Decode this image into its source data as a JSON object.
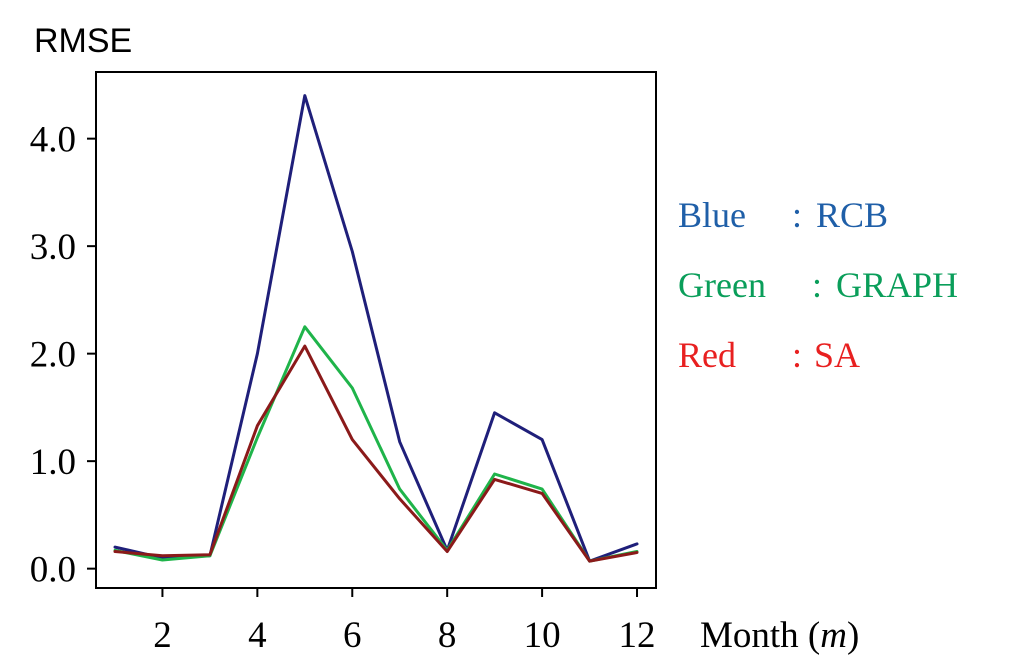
{
  "chart_data": {
    "type": "line",
    "title": "",
    "ylabel": "RMSE",
    "xlabel_text": "Month (",
    "xlabel_var": "m",
    "xlabel_close": ")",
    "x": [
      1,
      2,
      3,
      4,
      5,
      6,
      7,
      8,
      9,
      10,
      11,
      12
    ],
    "xticks": [
      2,
      4,
      6,
      8,
      10,
      12
    ],
    "xtick_labels": [
      "2",
      "4",
      "6",
      "8",
      "10",
      "12"
    ],
    "yticks": [
      0,
      1,
      2,
      3,
      4
    ],
    "ytick_labels": [
      "0.0",
      "1.0",
      "2.0",
      "3.0",
      "4.0"
    ],
    "xlim": [
      0.6,
      12.4
    ],
    "ylim": [
      -0.18,
      4.62
    ],
    "grid": false,
    "legend_position": "right",
    "series": [
      {
        "key": "blue",
        "color_name": "Blue",
        "name": "RCB",
        "color": "#1f1f7a",
        "legend_color": "#1f5fa8",
        "values": [
          0.2,
          0.1,
          0.12,
          2.0,
          4.4,
          2.95,
          1.18,
          0.17,
          1.45,
          1.2,
          0.07,
          0.23
        ]
      },
      {
        "key": "green",
        "color_name": "Green",
        "name": "GRAPH",
        "color": "#1fb44a",
        "legend_color": "#0a9e5a",
        "values": [
          0.17,
          0.08,
          0.12,
          1.22,
          2.25,
          1.68,
          0.74,
          0.17,
          0.88,
          0.74,
          0.07,
          0.16
        ]
      },
      {
        "key": "red",
        "color_name": "Red",
        "name": "SA",
        "color": "#8b1a1a",
        "legend_color": "#e82020",
        "values": [
          0.16,
          0.12,
          0.13,
          1.33,
          2.07,
          1.2,
          0.65,
          0.16,
          0.83,
          0.7,
          0.07,
          0.15
        ]
      }
    ]
  }
}
